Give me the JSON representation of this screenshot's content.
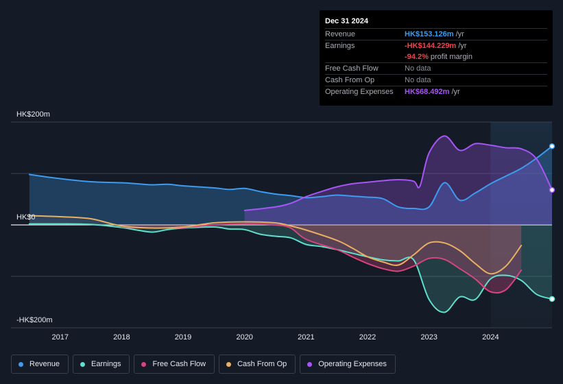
{
  "tooltip": {
    "date": "Dec 31 2024",
    "rows": [
      {
        "label": "Revenue",
        "value": "HK$153.126m",
        "unit": "/yr",
        "color": "#3d9bf0"
      },
      {
        "label": "Earnings",
        "value": "-HK$144.229m",
        "unit": "/yr",
        "color": "#f0424b"
      },
      {
        "label": "",
        "value": "-94.2%",
        "unit": "profit margin",
        "color": "#f0424b"
      },
      {
        "label": "Free Cash Flow",
        "value": "No data",
        "unit": "",
        "color": ""
      },
      {
        "label": "Cash From Op",
        "value": "No data",
        "unit": "",
        "color": ""
      },
      {
        "label": "Operating Expenses",
        "value": "HK$68.492m",
        "unit": "/yr",
        "color": "#a855f7"
      }
    ]
  },
  "legend": [
    {
      "label": "Revenue",
      "color": "#3d9bf0"
    },
    {
      "label": "Earnings",
      "color": "#5ee0cc"
    },
    {
      "label": "Free Cash Flow",
      "color": "#d6457e"
    },
    {
      "label": "Cash From Op",
      "color": "#e9b064"
    },
    {
      "label": "Operating Expenses",
      "color": "#a855f7"
    }
  ],
  "chart_data": {
    "type": "line",
    "y_top_label": "HK$200m",
    "y_zero_label": "HK$0",
    "y_bottom_label": "-HK$200m",
    "ylim": [
      -200,
      200
    ],
    "xlim": [
      2016.2,
      2025.0
    ],
    "x_ticks": [
      "2017",
      "2018",
      "2019",
      "2020",
      "2021",
      "2022",
      "2023",
      "2024"
    ],
    "x_tick_values": [
      2017,
      2018,
      2019,
      2020,
      2021,
      2022,
      2023,
      2024
    ],
    "forecast_start": 2024.0,
    "grid": true,
    "series": [
      {
        "name": "Revenue",
        "color": "#3d9bf0",
        "fill": "area",
        "x": [
          2016.5,
          2017.0,
          2017.5,
          2018.0,
          2018.25,
          2018.5,
          2018.75,
          2019.0,
          2019.5,
          2019.75,
          2020.0,
          2020.25,
          2020.5,
          2020.75,
          2021.0,
          2021.25,
          2021.5,
          2021.75,
          2022.0,
          2022.25,
          2022.5,
          2022.75,
          2023.0,
          2023.25,
          2023.5,
          2023.75,
          2024.0,
          2024.25,
          2024.5,
          2024.75,
          2025.0
        ],
        "y": [
          98,
          90,
          84,
          82,
          80,
          78,
          79,
          76,
          72,
          69,
          71,
          65,
          60,
          57,
          53,
          55,
          58,
          56,
          54,
          51,
          35,
          32,
          35,
          82,
          48,
          62,
          80,
          95,
          110,
          130,
          153
        ]
      },
      {
        "name": "Earnings",
        "color": "#5ee0cc",
        "fill": "area",
        "x": [
          2016.5,
          2017.0,
          2017.5,
          2018.0,
          2018.25,
          2018.5,
          2018.75,
          2019.0,
          2019.5,
          2019.75,
          2020.0,
          2020.25,
          2020.5,
          2020.75,
          2021.0,
          2021.25,
          2021.5,
          2021.75,
          2022.0,
          2022.25,
          2022.5,
          2022.75,
          2023.0,
          2023.25,
          2023.5,
          2023.75,
          2024.0,
          2024.25,
          2024.5,
          2024.75,
          2025.0
        ],
        "y": [
          2,
          2,
          1,
          -5,
          -10,
          -14,
          -9,
          -6,
          -4,
          -8,
          -9,
          -18,
          -22,
          -25,
          -38,
          -42,
          -48,
          -55,
          -62,
          -68,
          -70,
          -68,
          -145,
          -170,
          -140,
          -145,
          -105,
          -98,
          -108,
          -135,
          -144
        ]
      },
      {
        "name": "Free Cash Flow",
        "color": "#d6457e",
        "fill": "area",
        "x": [
          2018.0,
          2018.5,
          2019.0,
          2019.5,
          2020.0,
          2020.5,
          2020.75,
          2021.0,
          2021.5,
          2021.75,
          2022.0,
          2022.25,
          2022.5,
          2022.75,
          2023.0,
          2023.25,
          2023.5,
          2023.75,
          2024.0,
          2024.25,
          2024.5
        ],
        "y": [
          -4,
          -6,
          -5,
          0,
          2,
          0,
          -6,
          -28,
          -48,
          -62,
          -75,
          -85,
          -90,
          -80,
          -65,
          -67,
          -85,
          -105,
          -130,
          -126,
          -88
        ]
      },
      {
        "name": "Cash From Op",
        "color": "#e9b064",
        "fill": "area",
        "x": [
          2016.5,
          2017.0,
          2017.5,
          2018.0,
          2018.5,
          2019.0,
          2019.5,
          2020.0,
          2020.5,
          2020.75,
          2021.0,
          2021.5,
          2021.75,
          2022.0,
          2022.25,
          2022.5,
          2022.75,
          2023.0,
          2023.25,
          2023.5,
          2023.75,
          2024.0,
          2024.25,
          2024.5
        ],
        "y": [
          18,
          16,
          12,
          -2,
          -6,
          -4,
          4,
          6,
          4,
          -2,
          -10,
          -30,
          -45,
          -62,
          -72,
          -78,
          -58,
          -35,
          -35,
          -50,
          -75,
          -95,
          -80,
          -40
        ]
      },
      {
        "name": "Operating Expenses",
        "color": "#a855f7",
        "fill": "area",
        "x": [
          2020.0,
          2020.5,
          2020.75,
          2021.0,
          2021.25,
          2021.5,
          2021.75,
          2022.0,
          2022.25,
          2022.5,
          2022.75,
          2022.85,
          2023.0,
          2023.25,
          2023.5,
          2023.75,
          2024.0,
          2024.25,
          2024.5,
          2024.75,
          2025.0
        ],
        "y": [
          28,
          35,
          42,
          55,
          65,
          74,
          80,
          83,
          86,
          88,
          85,
          75,
          140,
          173,
          145,
          158,
          155,
          150,
          148,
          128,
          68
        ]
      }
    ]
  }
}
